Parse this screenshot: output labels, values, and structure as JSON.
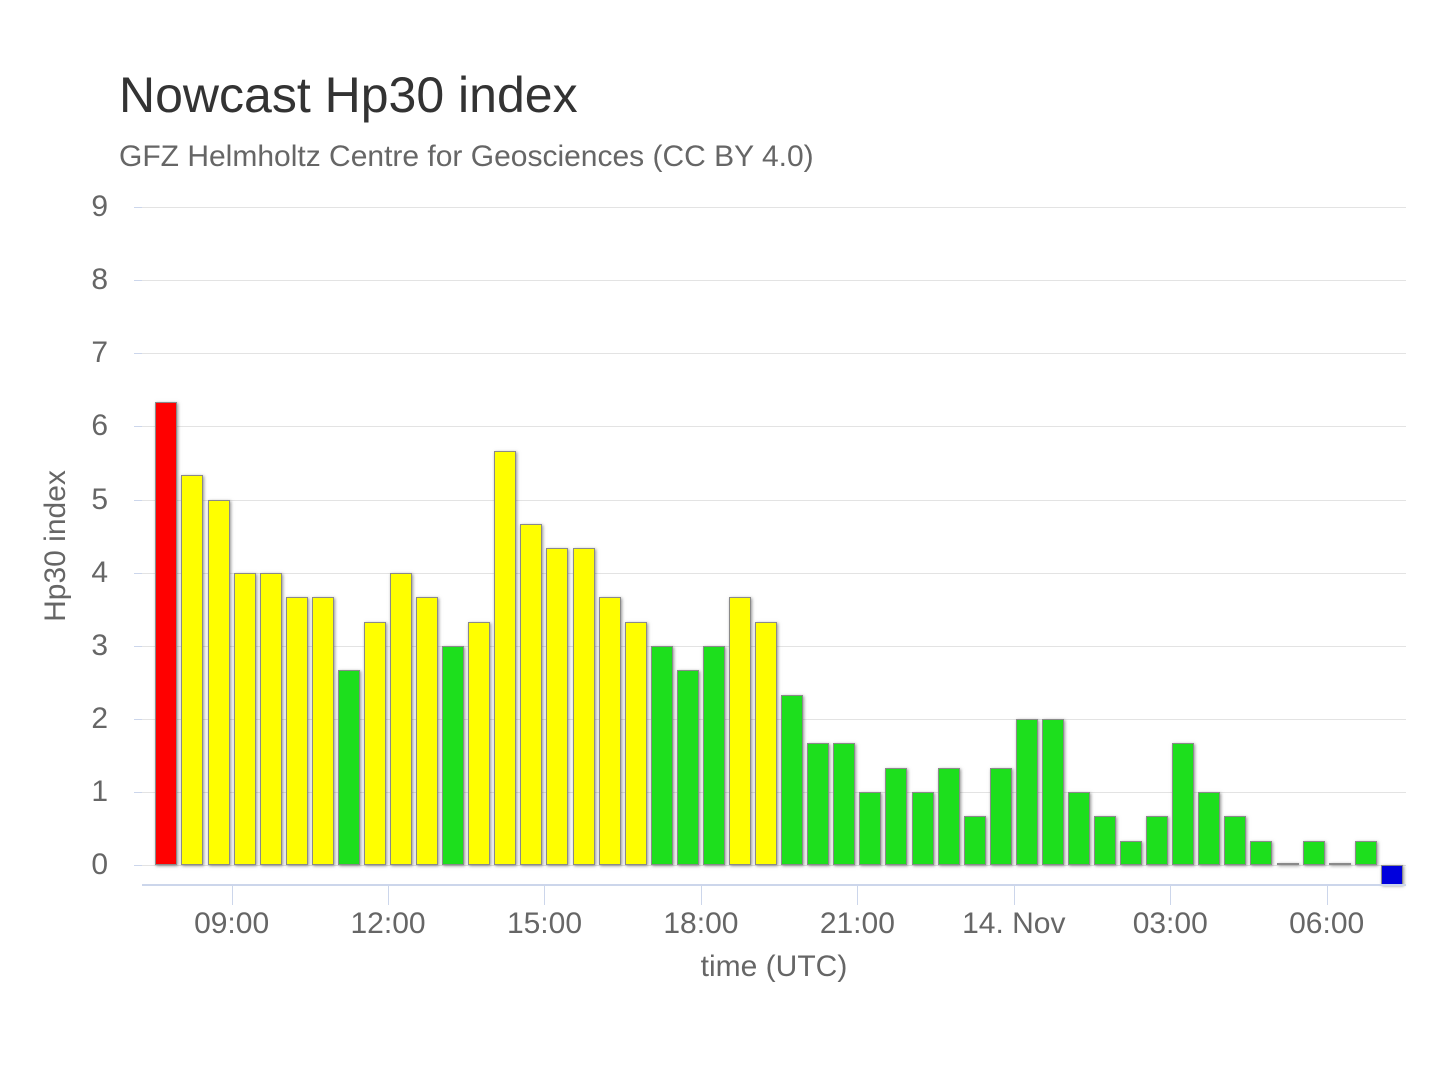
{
  "header": {
    "title": "Nowcast Hp30 index",
    "subtitle": "GFZ Helmholtz Centre for Geosciences (CC BY 4.0)"
  },
  "colors": {
    "red": "#ff0000",
    "yellow": "#ffff00",
    "green": "#1ddf1d",
    "blue": "#0000dd",
    "grid": "#e3e3e3",
    "axis_line": "#ccd6eb",
    "text": "#666666",
    "title_text": "#333333",
    "bar_border": "#8a8a8a"
  },
  "chart_data": {
    "type": "bar",
    "title": "Nowcast Hp30 index",
    "subtitle": "GFZ Helmholtz Centre for Geosciences (CC BY 4.0)",
    "xlabel": "time (UTC)",
    "ylabel": "Hp30 index",
    "ylim": [
      -0.27,
      9
    ],
    "grid": true,
    "legend": false,
    "y_ticks": [
      0,
      1,
      2,
      3,
      4,
      5,
      6,
      7,
      8,
      9
    ],
    "x_ticks": [
      {
        "label": "09:00",
        "slot": 3
      },
      {
        "label": "12:00",
        "slot": 9
      },
      {
        "label": "15:00",
        "slot": 15
      },
      {
        "label": "18:00",
        "slot": 21
      },
      {
        "label": "21:00",
        "slot": 27
      },
      {
        "label": "14. Nov",
        "slot": 33
      },
      {
        "label": "03:00",
        "slot": 39
      },
      {
        "label": "06:00",
        "slot": 45
      }
    ],
    "interval_minutes": 30,
    "points": [
      {
        "t": "07:30",
        "v": 6.33,
        "c": "red"
      },
      {
        "t": "08:00",
        "v": 5.33,
        "c": "yellow"
      },
      {
        "t": "08:30",
        "v": 5.0,
        "c": "yellow"
      },
      {
        "t": "09:00",
        "v": 4.0,
        "c": "yellow"
      },
      {
        "t": "09:30",
        "v": 4.0,
        "c": "yellow"
      },
      {
        "t": "10:00",
        "v": 3.67,
        "c": "yellow"
      },
      {
        "t": "10:30",
        "v": 3.67,
        "c": "yellow"
      },
      {
        "t": "11:00",
        "v": 2.67,
        "c": "green"
      },
      {
        "t": "11:30",
        "v": 3.33,
        "c": "yellow"
      },
      {
        "t": "12:00",
        "v": 4.0,
        "c": "yellow"
      },
      {
        "t": "12:30",
        "v": 3.67,
        "c": "yellow"
      },
      {
        "t": "13:00",
        "v": 3.0,
        "c": "green"
      },
      {
        "t": "13:30",
        "v": 3.33,
        "c": "yellow"
      },
      {
        "t": "14:00",
        "v": 5.67,
        "c": "yellow"
      },
      {
        "t": "14:30",
        "v": 4.67,
        "c": "yellow"
      },
      {
        "t": "15:00",
        "v": 4.33,
        "c": "yellow"
      },
      {
        "t": "15:30",
        "v": 4.33,
        "c": "yellow"
      },
      {
        "t": "16:00",
        "v": 3.67,
        "c": "yellow"
      },
      {
        "t": "16:30",
        "v": 3.33,
        "c": "yellow"
      },
      {
        "t": "17:00",
        "v": 3.0,
        "c": "green"
      },
      {
        "t": "17:30",
        "v": 2.67,
        "c": "green"
      },
      {
        "t": "18:00",
        "v": 3.0,
        "c": "green"
      },
      {
        "t": "18:30",
        "v": 3.67,
        "c": "yellow"
      },
      {
        "t": "19:00",
        "v": 3.33,
        "c": "yellow"
      },
      {
        "t": "19:30",
        "v": 2.33,
        "c": "green"
      },
      {
        "t": "20:00",
        "v": 1.67,
        "c": "green"
      },
      {
        "t": "20:30",
        "v": 1.67,
        "c": "green"
      },
      {
        "t": "21:00",
        "v": 1.0,
        "c": "green"
      },
      {
        "t": "21:30",
        "v": 1.33,
        "c": "green"
      },
      {
        "t": "22:00",
        "v": 1.0,
        "c": "green"
      },
      {
        "t": "22:30",
        "v": 1.33,
        "c": "green"
      },
      {
        "t": "23:00",
        "v": 0.67,
        "c": "green"
      },
      {
        "t": "23:30",
        "v": 1.33,
        "c": "green"
      },
      {
        "t": "00:00",
        "v": 2.0,
        "c": "green"
      },
      {
        "t": "00:30",
        "v": 2.0,
        "c": "green"
      },
      {
        "t": "01:00",
        "v": 1.0,
        "c": "green"
      },
      {
        "t": "01:30",
        "v": 0.67,
        "c": "green"
      },
      {
        "t": "02:00",
        "v": 0.33,
        "c": "green"
      },
      {
        "t": "02:30",
        "v": 0.67,
        "c": "green"
      },
      {
        "t": "03:00",
        "v": 1.67,
        "c": "green"
      },
      {
        "t": "03:30",
        "v": 1.0,
        "c": "green"
      },
      {
        "t": "04:00",
        "v": 0.67,
        "c": "green"
      },
      {
        "t": "04:30",
        "v": 0.33,
        "c": "green"
      },
      {
        "t": "05:00",
        "v": 0.0,
        "c": "green"
      },
      {
        "t": "05:30",
        "v": 0.33,
        "c": "green"
      },
      {
        "t": "06:00",
        "v": 0.0,
        "c": "green"
      },
      {
        "t": "06:30",
        "v": 0.33,
        "c": "green"
      },
      {
        "t": "07:00",
        "v": null,
        "c": "blue"
      }
    ]
  }
}
